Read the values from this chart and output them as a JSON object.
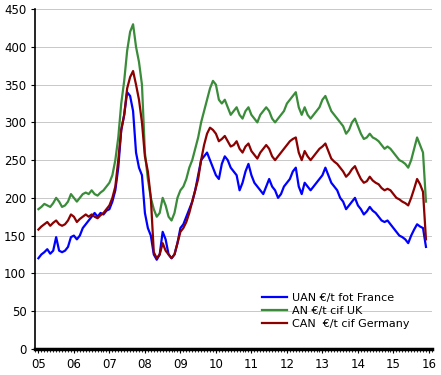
{
  "ylim": [
    0,
    450
  ],
  "yticks": [
    0,
    50,
    100,
    150,
    200,
    250,
    300,
    350,
    400,
    450
  ],
  "xtick_labels": [
    "05",
    "06",
    "07",
    "08",
    "09",
    "10",
    "11",
    "12",
    "13",
    "14",
    "15",
    "16"
  ],
  "colors": {
    "UAN": "#0000FF",
    "AN": "#3a8c3a",
    "CAN": "#8B0000"
  },
  "legend": [
    "UAN €/t fot France",
    "AN €/t cif UK",
    "CAN  €/t cif Germany"
  ],
  "UAN": [
    120,
    125,
    128,
    132,
    126,
    130,
    148,
    130,
    128,
    130,
    135,
    148,
    150,
    145,
    150,
    160,
    165,
    170,
    175,
    180,
    175,
    180,
    178,
    183,
    185,
    195,
    210,
    240,
    290,
    310,
    340,
    335,
    315,
    260,
    240,
    230,
    180,
    160,
    150,
    125,
    118,
    125,
    155,
    145,
    125,
    120,
    125,
    140,
    160,
    165,
    175,
    185,
    195,
    210,
    230,
    250,
    255,
    260,
    250,
    240,
    230,
    225,
    245,
    255,
    250,
    240,
    235,
    230,
    210,
    220,
    235,
    245,
    230,
    220,
    215,
    210,
    205,
    215,
    225,
    215,
    210,
    200,
    205,
    215,
    220,
    225,
    235,
    240,
    215,
    205,
    220,
    215,
    210,
    215,
    220,
    225,
    230,
    240,
    230,
    220,
    215,
    210,
    200,
    195,
    185,
    190,
    195,
    200,
    190,
    185,
    178,
    182,
    188,
    183,
    180,
    175,
    170,
    168,
    170,
    165,
    160,
    155,
    150,
    148,
    145,
    140,
    150,
    158,
    165,
    162,
    160,
    135
  ],
  "AN": [
    185,
    188,
    192,
    190,
    188,
    193,
    200,
    195,
    188,
    190,
    195,
    205,
    200,
    195,
    200,
    205,
    207,
    205,
    210,
    205,
    203,
    207,
    210,
    215,
    220,
    230,
    250,
    280,
    325,
    355,
    395,
    420,
    430,
    400,
    380,
    350,
    260,
    225,
    200,
    185,
    175,
    180,
    200,
    190,
    175,
    170,
    180,
    200,
    210,
    215,
    225,
    240,
    250,
    265,
    280,
    300,
    315,
    330,
    345,
    355,
    350,
    330,
    325,
    330,
    320,
    310,
    315,
    320,
    310,
    305,
    315,
    320,
    310,
    305,
    300,
    310,
    315,
    320,
    315,
    305,
    300,
    305,
    310,
    315,
    325,
    330,
    335,
    340,
    320,
    310,
    320,
    310,
    305,
    310,
    315,
    320,
    330,
    335,
    325,
    315,
    310,
    305,
    300,
    295,
    285,
    290,
    300,
    305,
    295,
    285,
    278,
    280,
    285,
    280,
    278,
    275,
    270,
    265,
    268,
    265,
    260,
    255,
    250,
    248,
    245,
    240,
    250,
    265,
    280,
    270,
    260,
    195
  ],
  "CAN": [
    158,
    162,
    165,
    168,
    163,
    167,
    170,
    165,
    163,
    165,
    170,
    178,
    175,
    168,
    172,
    175,
    178,
    175,
    178,
    175,
    173,
    177,
    180,
    185,
    190,
    200,
    215,
    250,
    290,
    310,
    345,
    360,
    368,
    350,
    330,
    300,
    255,
    235,
    200,
    128,
    120,
    125,
    140,
    130,
    125,
    120,
    125,
    140,
    155,
    160,
    168,
    180,
    195,
    210,
    225,
    250,
    270,
    285,
    293,
    290,
    285,
    275,
    278,
    282,
    275,
    268,
    270,
    275,
    265,
    260,
    268,
    272,
    262,
    257,
    252,
    260,
    265,
    270,
    265,
    255,
    250,
    255,
    260,
    265,
    270,
    275,
    278,
    280,
    260,
    250,
    262,
    255,
    250,
    255,
    260,
    265,
    268,
    272,
    262,
    252,
    248,
    245,
    240,
    235,
    228,
    232,
    238,
    242,
    233,
    225,
    220,
    222,
    228,
    223,
    220,
    218,
    213,
    210,
    212,
    210,
    205,
    200,
    198,
    195,
    193,
    190,
    200,
    212,
    225,
    218,
    208,
    145
  ]
}
